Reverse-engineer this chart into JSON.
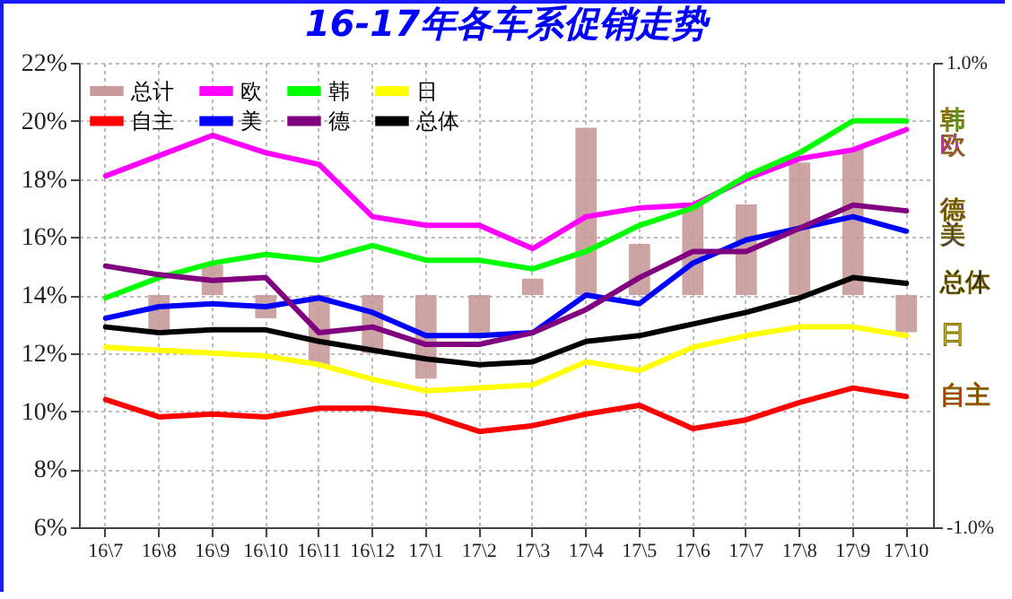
{
  "chart_data": {
    "type": "line",
    "title": "16-17年各车系促销走势",
    "categories": [
      "16\\7",
      "16\\8",
      "16\\9",
      "16\\10",
      "16\\11",
      "16\\12",
      "17\\1",
      "17\\2",
      "17\\3",
      "17\\4",
      "17\\5",
      "17\\6",
      "17\\7",
      "17\\8",
      "17\\9",
      "17\\10"
    ],
    "series": [
      {
        "name": "总计",
        "type": "bar",
        "axis": "y2",
        "color": "#c89a9a",
        "values": [
          null,
          -0.15,
          0.13,
          -0.1,
          -0.3,
          -0.25,
          -0.36,
          -0.17,
          0.07,
          0.72,
          0.22,
          0.39,
          0.39,
          0.57,
          0.63,
          -0.16
        ]
      },
      {
        "name": "自主",
        "color": "#ff0000",
        "values": [
          10.4,
          9.8,
          9.9,
          9.8,
          10.1,
          10.1,
          9.9,
          9.3,
          9.5,
          9.9,
          10.2,
          9.4,
          9.7,
          10.3,
          10.8,
          10.5
        ]
      },
      {
        "name": "欧",
        "color": "#ff00ff",
        "values": [
          18.1,
          18.8,
          19.5,
          18.9,
          18.5,
          16.7,
          16.4,
          16.4,
          15.6,
          16.7,
          17.0,
          17.1,
          18.0,
          18.7,
          19.0,
          19.7
        ]
      },
      {
        "name": "美",
        "color": "#0000ff",
        "values": [
          13.2,
          13.6,
          13.7,
          13.6,
          13.9,
          13.4,
          12.6,
          12.6,
          12.7,
          14.0,
          13.7,
          15.1,
          15.9,
          16.3,
          16.7,
          16.2
        ]
      },
      {
        "name": "韩",
        "color": "#00ff00",
        "values": [
          13.9,
          14.6,
          15.1,
          15.4,
          15.2,
          15.7,
          15.2,
          15.2,
          14.9,
          15.5,
          16.4,
          17.0,
          18.1,
          18.9,
          20.0,
          20.0
        ]
      },
      {
        "name": "德",
        "color": "#800080",
        "values": [
          15.0,
          14.7,
          14.5,
          14.6,
          12.7,
          12.9,
          12.3,
          12.3,
          12.7,
          13.5,
          14.6,
          15.5,
          15.5,
          16.3,
          17.1,
          16.9
        ]
      },
      {
        "name": "日",
        "color": "#ffff00",
        "values": [
          12.2,
          12.1,
          12.0,
          11.9,
          11.6,
          11.1,
          10.7,
          10.8,
          10.9,
          11.7,
          11.4,
          12.2,
          12.6,
          12.9,
          12.9,
          12.6
        ]
      },
      {
        "name": "总体",
        "color": "#000000",
        "values": [
          12.9,
          12.7,
          12.8,
          12.8,
          12.4,
          12.1,
          11.8,
          11.6,
          11.7,
          12.4,
          12.6,
          13.0,
          13.4,
          13.9,
          14.6,
          14.4
        ]
      }
    ],
    "ylim": [
      6,
      22
    ],
    "yticks": [
      {
        "value": 6,
        "label": "6%"
      },
      {
        "value": 8,
        "label": "8%"
      },
      {
        "value": 10,
        "label": "10%"
      },
      {
        "value": 12,
        "label": "12%"
      },
      {
        "value": 14,
        "label": "14%"
      },
      {
        "value": 16,
        "label": "16%"
      },
      {
        "value": 18,
        "label": "18%"
      },
      {
        "value": 20,
        "label": "20%"
      },
      {
        "value": 22,
        "label": "22%"
      }
    ],
    "y2lim": [
      -1,
      1
    ],
    "y2ticks": [
      {
        "value": -1,
        "label": "-1.0%"
      },
      {
        "value": 1,
        "label": "1.0%"
      }
    ],
    "grid": true,
    "legend": "top left"
  }
}
